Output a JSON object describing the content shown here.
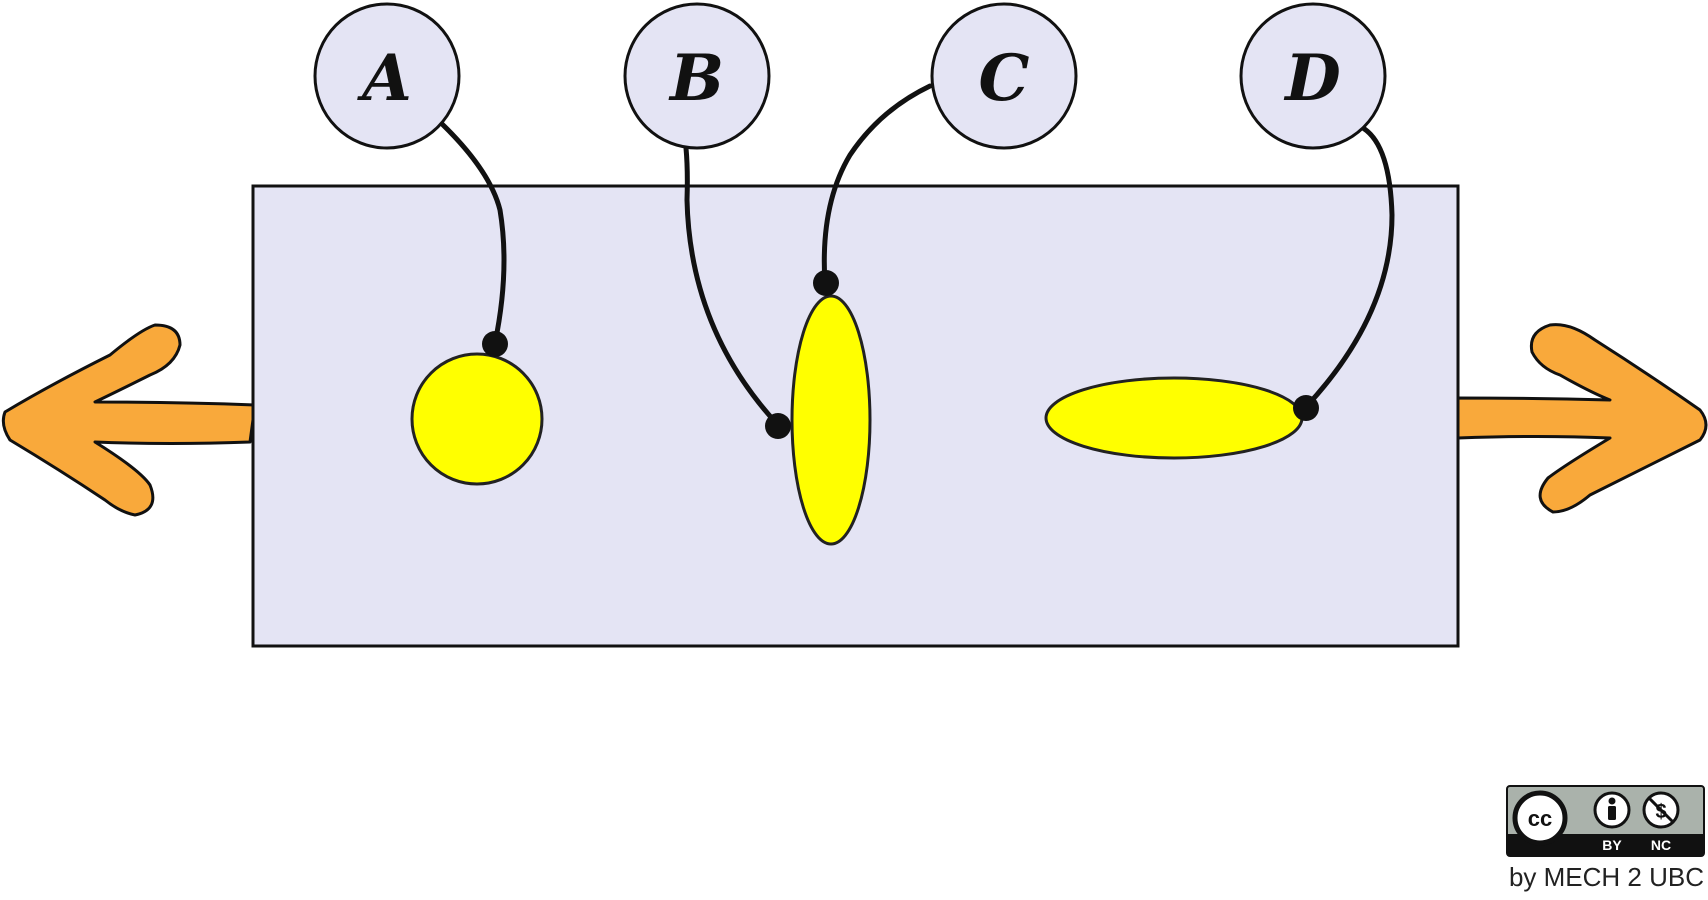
{
  "diagram": {
    "labels": [
      "A",
      "B",
      "C",
      "D"
    ],
    "colors": {
      "plate": "#e4e4f4",
      "inclusion": "#ffff00",
      "arrow": "#f9a93b",
      "label_fill": "#e4e4f4",
      "line": "#111111"
    }
  },
  "license": {
    "badge_cc": "cc",
    "badge_by": "BY",
    "badge_nc": "NC",
    "credit": "by MECH 2 UBC"
  }
}
